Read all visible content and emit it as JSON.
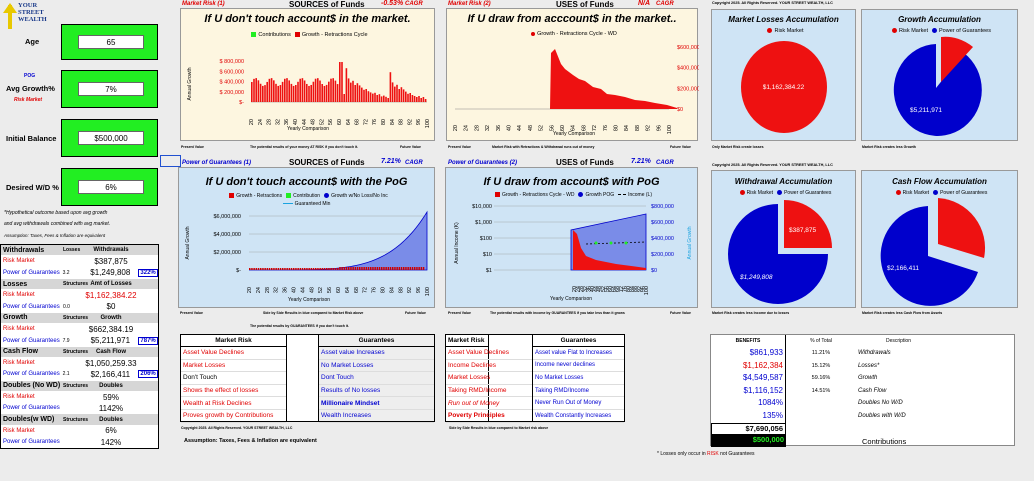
{
  "logo": {
    "line1": "YOUR",
    "line2": "STREET",
    "line3": "WEALTH"
  },
  "inputs": {
    "age": {
      "label": "Age",
      "value": "65"
    },
    "growth": {
      "label": "Avg Growth%",
      "pog": "POG",
      "risk": "Risk Market",
      "value": "7%"
    },
    "balance": {
      "label": "Initial Balance",
      "value": "$500,000"
    },
    "wd": {
      "label": "Desired W/D %",
      "value": "6%"
    }
  },
  "notes": {
    "n1": "*Hypothetical outcome based upon avg growth",
    "n2": "and avg withdrawals combined with avg market.",
    "n3": "Assumption: Taxes, Fees & Inflation are equivalent"
  },
  "summary": [
    {
      "hd": "Withdrawals",
      "sub": "Losses",
      "col": "Withdrawals"
    },
    {
      "a": "Risk Market",
      "v": "$387,875",
      "cls": "red"
    },
    {
      "a": "Power of Guarantees",
      "b": "3.2",
      "v": "$1,249,808",
      "p": "322%",
      "cls": "blue"
    },
    {
      "hd": "Losses",
      "sub": "Structures",
      "col": "Amt of Losses"
    },
    {
      "a": "Risk Market",
      "v": "$1,162,384.22",
      "cls": "red",
      "vr": true
    },
    {
      "a": "Power of Guarantees",
      "b": "0.0",
      "v": "$0",
      "cls": "blue"
    },
    {
      "hd": "Growth",
      "sub": "Structures",
      "col": "Growth"
    },
    {
      "a": "Risk Market",
      "v": "$662,384.19",
      "cls": "red"
    },
    {
      "a": "Power of Guarantees",
      "b": "7.9",
      "v": "$5,211,971",
      "p": "787%",
      "cls": "blue"
    },
    {
      "hd": "Cash Flow",
      "sub": "Structures",
      "col": "Cash Flow"
    },
    {
      "a": "Risk Market",
      "v": "$1,050,259.33",
      "cls": "red"
    },
    {
      "a": "Power of Guarantees",
      "b": "2.1",
      "v": "$2,166,411",
      "p": "206%",
      "cls": "blue"
    },
    {
      "hd": "Doubles (No WD)",
      "sub": "Structures",
      "col": "Doubles"
    },
    {
      "a": "Risk Market",
      "v": "59%",
      "cls": "red"
    },
    {
      "a": "Power of Guarantees",
      "v": "1142%",
      "cls": "blue"
    },
    {
      "hd": "Doubles(w WD)",
      "sub": "Structures",
      "col": "Doubles"
    },
    {
      "a": "Risk Market",
      "v": "6%",
      "cls": "red"
    },
    {
      "a": "Power of Guarantees",
      "v": "142%",
      "cls": "blue"
    }
  ],
  "p1": {
    "tag": "Market Risk (1)",
    "src": "SOURCES of Funds",
    "cagr": "-0.53%",
    "cagrl": "CAGR",
    "title": "If U don't touch account$ in the market.",
    "leg1": "Contributions",
    "leg2": "Growth - Retractions Cycle",
    "ylab": "Annual Growth",
    "xlab": "Yearly Comparison",
    "yt": [
      "$ 800,000",
      "$ 600,000",
      "$ 400,000",
      "$ 200,000",
      "$-"
    ],
    "f1": "Present Value",
    "f2": "The potential results of your money AT RISK if you don't touch it.",
    "f3": "Future Value"
  },
  "p2": {
    "tag": "Market Risk (2)",
    "src": "USES of Funds",
    "cagr": "N/A",
    "cagrl": "CAGR",
    "title": "If U draw from acccount$ in the market..",
    "leg1": "Growth - Retractions Cycle - WD",
    "yt": [
      "$600,000",
      "$400,000",
      "$200,000",
      "$0"
    ],
    "xlab": "Yearly Comparison",
    "f1": "Present Value",
    "f2": "Market Risk with Retractions & Withdrawal runs out of money",
    "f3": "Future Value"
  },
  "p3": {
    "cr": "Copyright 2025.  All Rights Reserved.  YOUR STREET WEALTH, LLC",
    "title": "Market Losses  Accumulation",
    "leg": "Risk Market",
    "val": "$1,162,384.22",
    "foot": "Only Market Risk create losses"
  },
  "p4": {
    "title": "Growth Accumulation",
    "leg1": "Risk Market",
    "leg2": "Power of Guarantees",
    "val": "$5,211,971",
    "foot": "Market Risk creates less Growth"
  },
  "p5": {
    "tag": "Power of Guarantees (1)",
    "src": "SOURCES of Funds",
    "cagr": "7.21%",
    "cagrl": "CAGR",
    "title": "If U don't touch account$ with the PoG",
    "leg1": "Growth - Retractions",
    "leg2": "Contribution",
    "leg3": "Growth w/No Loss/No Inc",
    "leg4": "Guaranteed Min",
    "ylab": "Annual Growth",
    "yt": [
      "$6,000,000",
      "$4,000,000",
      "$2,000,000",
      "$-"
    ],
    "xlab": "Yearly Comparison",
    "f1": "Present Value",
    "f2": "Side by Side Results in blue compared to Market Risk above",
    "f3": "Future Value",
    "f4": "The potential results by GUARANTEES if you don't touch it."
  },
  "p6": {
    "tag": "Power of Guarantees (2)",
    "src": "USES of Funds",
    "cagr": "7.21%",
    "cagrl": "CAGR",
    "title": "If U draw from account$ with PoG",
    "leg1": "Growth - Retractions Cycle - WD",
    "leg2": "Growth POG",
    "leg3": "Income (L)",
    "ylab": "Annual Income (K)",
    "y2lab": "Annual Growth",
    "ytl": [
      "$10,000",
      "$1,000",
      "$100",
      "$10",
      "$1"
    ],
    "ytr": [
      "$800,000",
      "$600,000",
      "$400,000",
      "$200,000",
      "$0"
    ],
    "xlab": "Yearly Comparison",
    "f1": "Present Value",
    "f2": "The potential results with income by GUARANTEES if you take less than it grows",
    "f3": "Future Value"
  },
  "p7": {
    "cr": "Copyright 2025.  All Rights Reserved.  YOUR STREET WEALTH, LLC",
    "title": "Withdrawal Accumulation",
    "leg1": "Risk Market",
    "leg2": "Power of Guarantees",
    "v1": "$387,875",
    "v2": "$1,249,808",
    "foot": "Market Risk creates less Income due to losses"
  },
  "p8": {
    "title": "Cash Flow Accumulation",
    "leg1": "Risk Market",
    "leg2": "Power of Guarantees",
    "v2": "$2,166,411",
    "foot": "Market Risk creates less Cash Flow from Assets"
  },
  "xticks": [
    "20",
    "24",
    "28",
    "32",
    "36",
    "40",
    "44",
    "48",
    "52",
    "56",
    "60",
    "64",
    "68",
    "72",
    "76",
    "80",
    "84",
    "88",
    "92",
    "96",
    "100"
  ],
  "cmp1": {
    "h1": "Market Risk",
    "h2": "Guarantees",
    "left": [
      "Asset Value Declines",
      "Market Losses",
      "Don't Touch",
      "Shows the effect of losses",
      "Wealth at Risk Declines",
      "Proves growth by Contributions"
    ],
    "right": [
      "Asset value Increases",
      "No Market Losses",
      "Dont Touch",
      "Results of No losses",
      "Millionaire Mindset",
      "Wealth Increases"
    ],
    "cr": "Copyright 2025.  All Rights Reserved.  YOUR STREET WEALTH, LLC",
    "assume": "Assumption: Taxes, Fees & Inflation are equivalent"
  },
  "cmp2": {
    "h1": "Market Risk",
    "h2": "Guarantees",
    "left": [
      "Asset Value Declines",
      "Income Declines",
      "Market Losses",
      "Taking RMD/Income",
      "Run out of Money",
      "Poverty Principles"
    ],
    "right": [
      "Asset value Flat to Increases",
      "Income never declines",
      "No Market Losses",
      "Taking RMD/Income",
      "Never Run Out of Money",
      "Wealth Constantly Increases"
    ],
    "foot": "Side by Side Results in blue compared to Market risk above"
  },
  "benefits": {
    "h1": "BENEFITS",
    "h2": "% of Total",
    "h3": "Description",
    "rows": [
      {
        "v": "$861,933",
        "p": "11.21%",
        "d": "Withdrawals",
        "c": "blue"
      },
      {
        "v": "$1,162,384",
        "p": "15.12%",
        "d": "Losses*",
        "c": "red"
      },
      {
        "v": "$4,549,587",
        "p": "59.16%",
        "d": "Growth",
        "c": "blue"
      },
      {
        "v": "$1,116,152",
        "p": "14.51%",
        "d": "Cash Flow",
        "c": "blue"
      },
      {
        "v": "1084%",
        "p": "",
        "d": "Doubles No W/D",
        "c": "blue"
      },
      {
        "v": "135%",
        "p": "",
        "d": "Doubles with W/D",
        "c": "blue"
      }
    ],
    "total": "$7,690,056",
    "contrib": "$500,000",
    "contribl": "Contributions",
    "note1": "* Losses only occur in ",
    "note2": "RISK",
    "note3": " not Guarantees"
  }
}
